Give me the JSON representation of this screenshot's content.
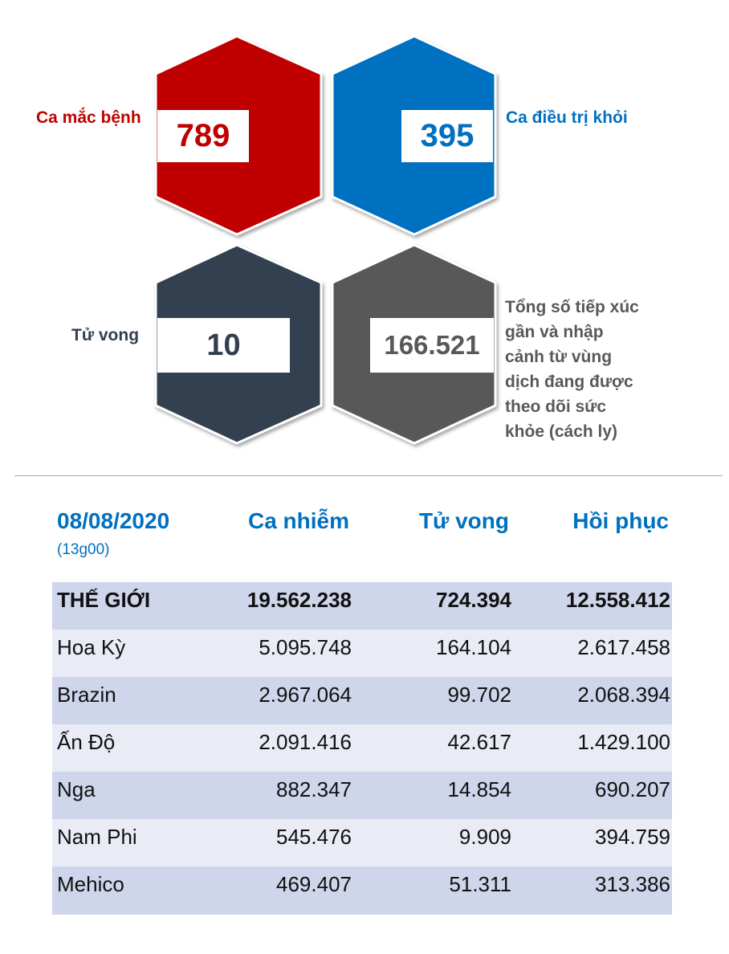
{
  "colors": {
    "red": "#c00000",
    "blue": "#0070c0",
    "navy": "#323f4f",
    "gray": "#595959",
    "accent_text": "#0070c0"
  },
  "stats": {
    "cases": {
      "label": "Ca mắc bệnh",
      "value": "789"
    },
    "recovered": {
      "label": "Ca điều trị khỏi",
      "value": "395"
    },
    "deaths": {
      "label": "Tử vong",
      "value": "10"
    },
    "monitored": {
      "label_lines": [
        "Tổng số tiếp xúc",
        "gần và nhập",
        "cảnh từ vùng",
        "dịch đang được",
        "theo dõi sức",
        "khỏe (cách ly)"
      ],
      "value": "166.521"
    }
  },
  "table": {
    "date": "08/08/2020",
    "time": "(13g00)",
    "headers": [
      "Ca nhiễm",
      "Tử vong",
      "Hồi phục"
    ],
    "rows": [
      {
        "name": "THẾ GIỚI",
        "cases": "19.562.238",
        "deaths": "724.394",
        "recovered": "12.558.412"
      },
      {
        "name": "Hoa Kỳ",
        "cases": "5.095.748",
        "deaths": "164.104",
        "recovered": "2.617.458"
      },
      {
        "name": "Brazin",
        "cases": "2.967.064",
        "deaths": "99.702",
        "recovered": "2.068.394"
      },
      {
        "name": "Ấn Độ",
        "cases": "2.091.416",
        "deaths": "42.617",
        "recovered": "1.429.100"
      },
      {
        "name": "Nga",
        "cases": "882.347",
        "deaths": "14.854",
        "recovered": "690.207"
      },
      {
        "name": "Nam Phi",
        "cases": "545.476",
        "deaths": "9.909",
        "recovered": "394.759"
      },
      {
        "name": "Mehico",
        "cases": "469.407",
        "deaths": "51.311",
        "recovered": "313.386"
      }
    ]
  }
}
